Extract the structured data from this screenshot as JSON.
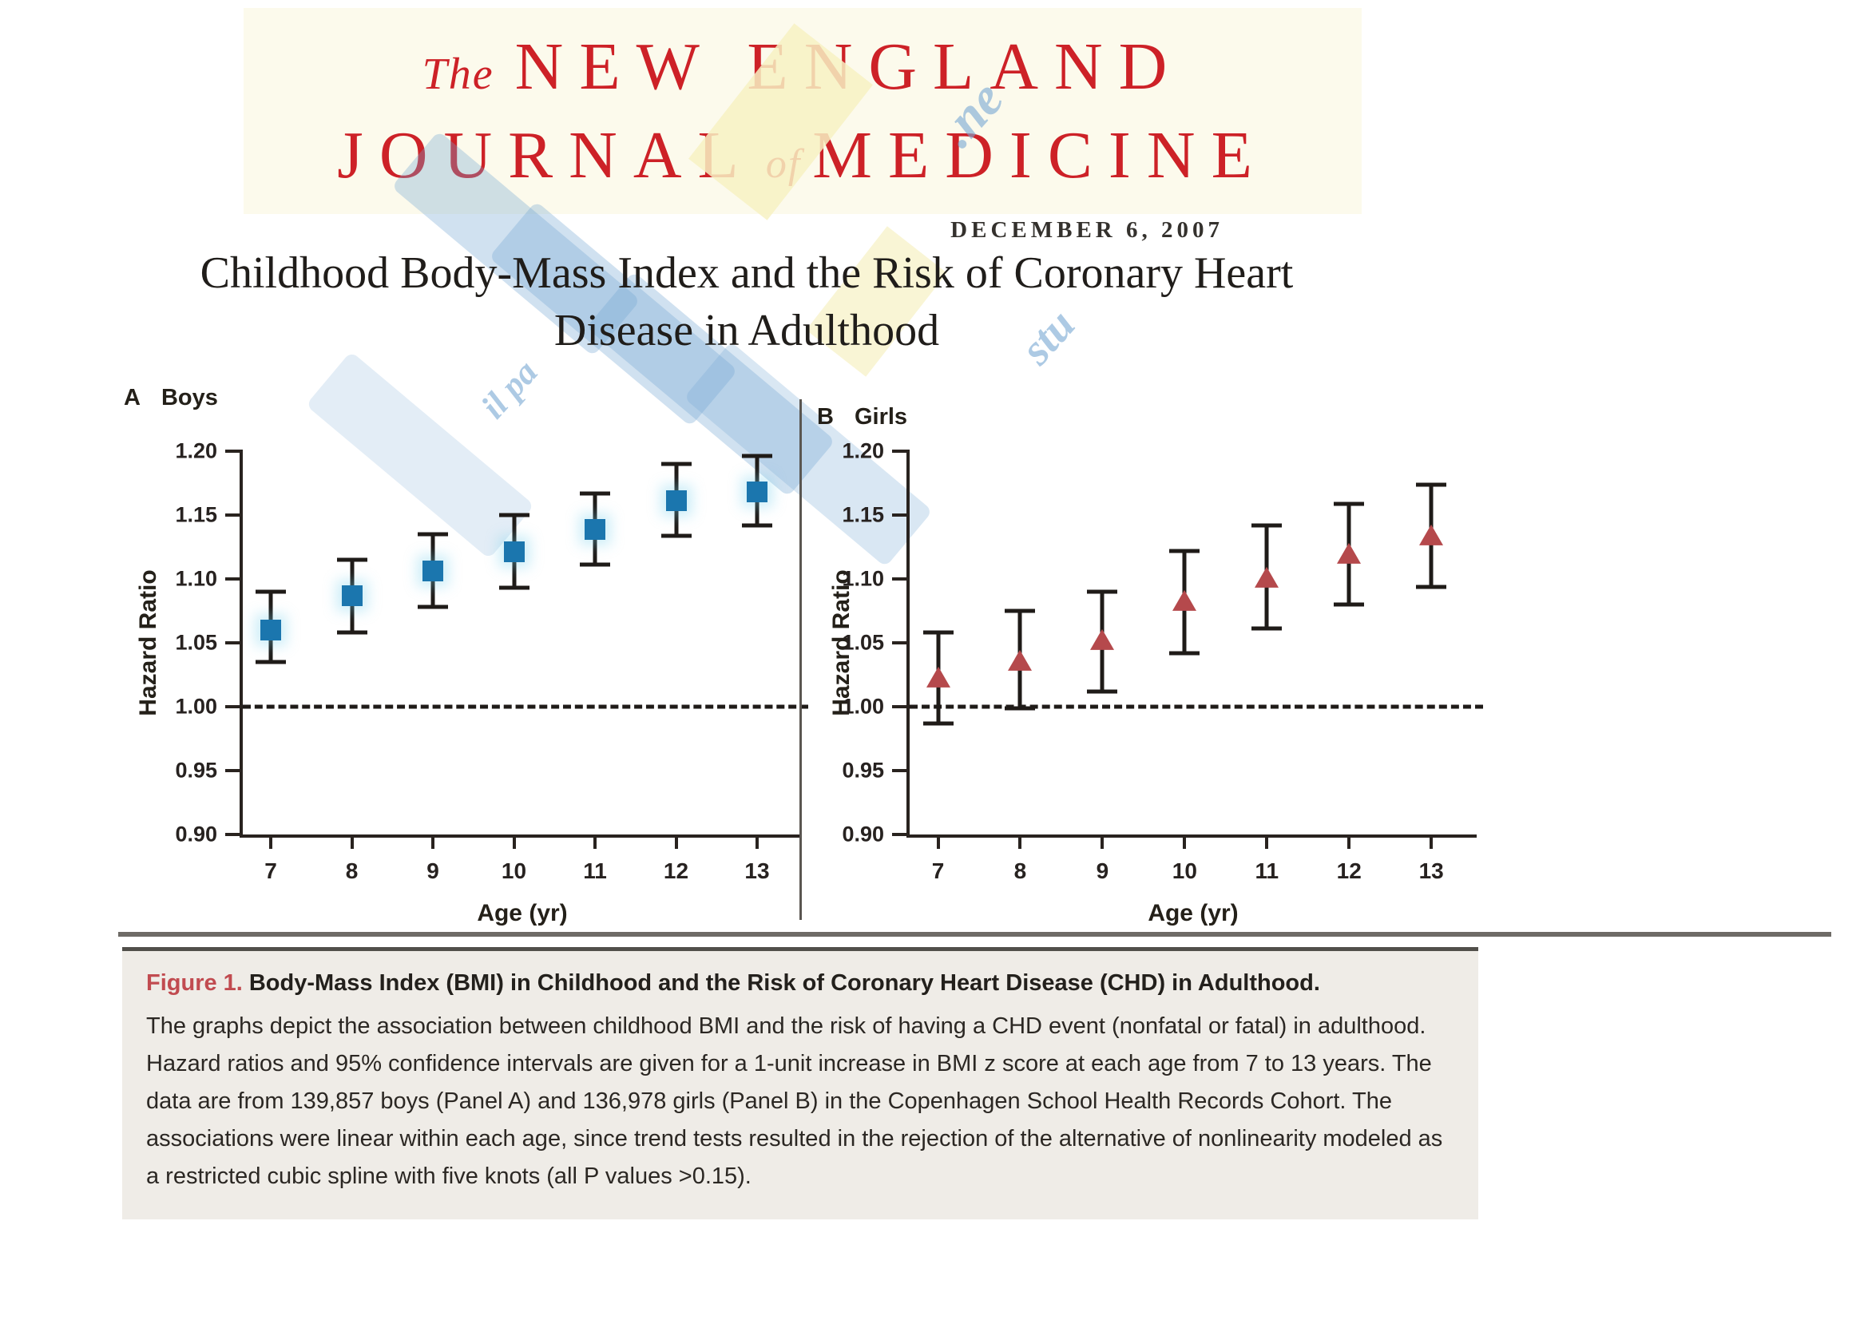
{
  "header": {
    "journal_the": "The",
    "journal_line1": "NEW ENGLAND",
    "journal_line2_a": "JOURNAL",
    "journal_of": "of",
    "journal_line2_b": "MEDICINE",
    "date": "DECEMBER 6, 2007",
    "title_line1": "Childhood Body-Mass Index and the Risk of Coronary Heart",
    "title_line2": "Disease in Adulthood"
  },
  "watermark": {
    "fragments": [
      ".ne",
      "stu",
      "il pa"
    ]
  },
  "figure": {
    "panels": [
      {
        "key": "A",
        "group": "Boys"
      },
      {
        "key": "B",
        "group": "Girls"
      }
    ]
  },
  "chart_data": [
    {
      "type": "scatter",
      "panel": "A",
      "group": "Boys",
      "marker": "square",
      "marker_color": "#1b76ae",
      "errorbar_color": "#1f1b18",
      "x": [
        7,
        8,
        9,
        10,
        11,
        12,
        13
      ],
      "hr": [
        1.06,
        1.087,
        1.106,
        1.121,
        1.139,
        1.161,
        1.168
      ],
      "ci_low": [
        1.035,
        1.058,
        1.078,
        1.093,
        1.111,
        1.134,
        1.142
      ],
      "ci_high": [
        1.09,
        1.115,
        1.135,
        1.15,
        1.167,
        1.19,
        1.196
      ],
      "xlabel": "Age (yr)",
      "ylabel": "Hazard Ratio",
      "ylim": [
        0.9,
        1.2
      ],
      "yticks": [
        1.2,
        1.15,
        1.1,
        1.05,
        1.0,
        0.95,
        0.9
      ],
      "reference_line": 1.0,
      "grid": false,
      "legend": "none"
    },
    {
      "type": "scatter",
      "panel": "B",
      "group": "Girls",
      "marker": "triangle",
      "marker_color": "#b5494c",
      "errorbar_color": "#1f1b18",
      "x": [
        7,
        8,
        9,
        10,
        11,
        12,
        13
      ],
      "hr": [
        1.022,
        1.035,
        1.051,
        1.082,
        1.1,
        1.119,
        1.133
      ],
      "ci_low": [
        0.987,
        0.999,
        1.012,
        1.042,
        1.061,
        1.08,
        1.094
      ],
      "ci_high": [
        1.058,
        1.075,
        1.09,
        1.122,
        1.142,
        1.159,
        1.174
      ],
      "xlabel": "Age (yr)",
      "ylabel": "Hazard Ratio",
      "ylim": [
        0.9,
        1.2
      ],
      "yticks": [
        1.2,
        1.15,
        1.1,
        1.05,
        1.0,
        0.95,
        0.9
      ],
      "reference_line": 1.0,
      "grid": false,
      "legend": "none"
    }
  ],
  "caption": {
    "label": "Figure 1.",
    "title": "Body-Mass Index (BMI) in Childhood and the Risk of Coronary Heart Disease (CHD) in Adulthood.",
    "body": "The graphs depict the association between childhood BMI and the risk of having a CHD event (nonfatal or fatal) in adulthood. Hazard ratios and 95% confidence intervals are given for a 1-unit increase in BMI z score at each age from 7 to 13 years. The data are from 139,857 boys (Panel A) and 136,978 girls (Panel B) in the Copenhagen School Health Records Cohort. The associations were linear within each age, since trend tests resulted in the rejection of the alternative of nonlinearity modeled as a restricted cubic spline with five knots (all P values >0.15)."
  },
  "colors": {
    "masthead_red": "#cd2127",
    "masthead_bg": "#fcfaec",
    "caption_bg": "#efece7",
    "boys_marker": "#1b76ae",
    "girls_marker": "#b5494c"
  }
}
